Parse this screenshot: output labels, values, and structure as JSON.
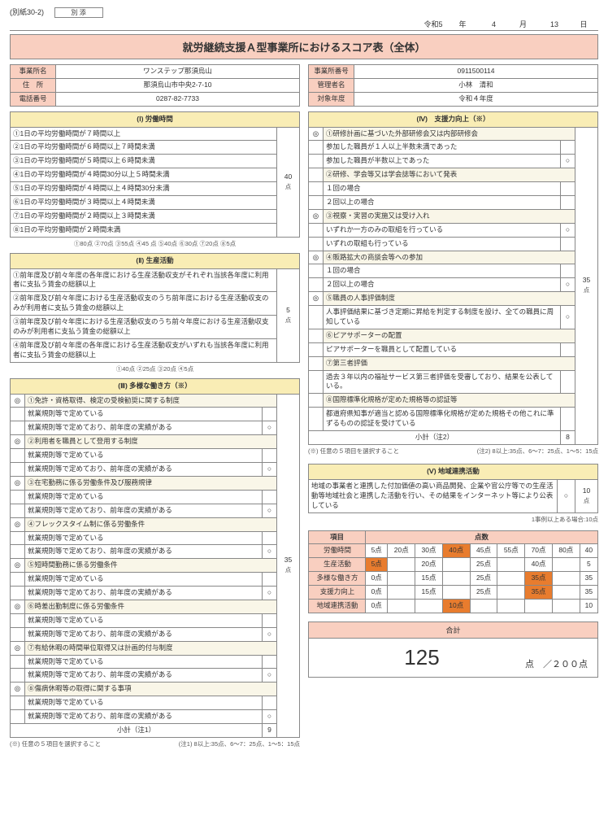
{
  "meta": {
    "form_id": "(別紙30-2)",
    "stamp": "別 添",
    "era": "令和5",
    "year_lbl": "年",
    "month": "4",
    "month_lbl": "月",
    "day": "13",
    "day_lbl": "日",
    "title": "就労継続支援Ａ型事業所におけるスコア表（全体）"
  },
  "info_left": [
    {
      "label": "事業所名",
      "value": "ワンステップ那須烏山"
    },
    {
      "label": "住　所",
      "value": "那須烏山市中央2-7-10"
    },
    {
      "label": "電話番号",
      "value": "0287-82-7733"
    }
  ],
  "info_right": [
    {
      "label": "事業所番号",
      "value": "0911500114"
    },
    {
      "label": "管理者名",
      "value": "小林　清和"
    },
    {
      "label": "対象年度",
      "value": "令和４年度"
    }
  ],
  "s1": {
    "head": "(Ⅰ) 労働時間",
    "rows": [
      "①1日の平均労働時間が７時間以上",
      "②1日の平均労働時間が６時間以上７時間未満",
      "③1日の平均労働時間が５時間以上６時間未満",
      "④1日の平均労働時間が４時間30分以上５時間未満",
      "⑤1日の平均労働時間が４時間以上４時間30分未満",
      "⑥1日の平均労働時間が３時間以上４時間未満",
      "⑦1日の平均労働時間が２時間以上３時間未満",
      "⑧1日の平均労働時間が２時間未満"
    ],
    "score": "40",
    "unit": "点",
    "key": "①80点 ②70点 ③55点 ④45 点 ⑤40点 ⑥30点 ⑦20点 ⑧5点"
  },
  "s2": {
    "head": "(Ⅱ) 生産活動",
    "rows": [
      "①前年度及び前々年度の各年度における生産活動収支がそれぞれ当該各年度に利用者に支払う賃金の総額以上",
      "②前年度及び前々年度における生産活動収支のうち前年度における生産活動収支のみが利用者に支払う賃金の総額以上",
      "③前年度及び前々年度における生産活動収支のうち前々年度における生産活動収支のみが利用者に支払う賃金の総額以上",
      "④前年度及び前々年度の各年度における生産活動収支がいずれも当該各年度に利用者に支払う賃金の総額以上"
    ],
    "score": "5",
    "unit": "点",
    "key": "①40点 ②25点 ③20点 ④5点"
  },
  "s3": {
    "head": "(Ⅲ) 多様な働き方（※）",
    "groups": [
      {
        "h": "①免許・資格取得、検定の受検勧奨に関する制度",
        "mark": "◎",
        "a": "就業規則等で定めている",
        "b": "就業規則等で定めており、前年度の実績がある"
      },
      {
        "h": "②利用者を職員として登用する制度",
        "mark": "◎",
        "a": "就業規則等で定めている",
        "b": "就業規則等で定めており、前年度の実績がある"
      },
      {
        "h": "③在宅勤務に係る労働条件及び服務規律",
        "mark": "◎",
        "a": "就業規則等で定めている",
        "b": "就業規則等で定めており、前年度の実績がある"
      },
      {
        "h": "④フレックスタイム制に係る労働条件",
        "mark": "◎",
        "a": "就業規則等で定めている",
        "b": "就業規則等で定めており、前年度の実績がある"
      },
      {
        "h": "⑤短時間勤務に係る労働条件",
        "mark": "◎",
        "a": "就業規則等で定めている",
        "b": "就業規則等で定めており、前年度の実績がある"
      },
      {
        "h": "⑥時差出勤制度に係る労働条件",
        "mark": "◎",
        "a": "就業規則等で定めている",
        "b": "就業規則等で定めており、前年度の実績がある"
      },
      {
        "h": "⑦有給休暇の時間単位取得又は計画的付与制度",
        "mark": "◎",
        "a": "就業規則等で定めている",
        "b": "就業規則等で定めており、前年度の実績がある"
      },
      {
        "h": "⑧傷病休暇等の取得に関する事項",
        "mark": "◎",
        "a": "就業規則等で定めている",
        "b": "就業規則等で定めており、前年度の実績がある"
      }
    ],
    "subtotal_lbl": "小計（注1）",
    "subtotal": "9",
    "score": "35",
    "unit": "点",
    "note": "(※) 任意の５項目を選択すること",
    "key": "(注1) 8以上:35点、6～7：25点、1～5：15点"
  },
  "s4": {
    "head": "(Ⅳ)　支援力向上（※）",
    "blocks": [
      {
        "mark": "◎",
        "h": "①研修計画に基づいた外部研修会又は内部研修会",
        "rows": [
          {
            "t": "参加した職員が１人以上半数未満であった",
            "m": ""
          },
          {
            "t": "参加した職員が半数以上であった",
            "m": "○"
          }
        ]
      },
      {
        "mark": "",
        "h": "②研修、学会等又は学会誌等において発表",
        "rows": [
          {
            "t": "１回の場合",
            "m": ""
          },
          {
            "t": "２回以上の場合",
            "m": ""
          }
        ]
      },
      {
        "mark": "◎",
        "h": "③視察・実習の実施又は受け入れ",
        "rows": [
          {
            "t": "いずれか一方のみの取組を行っている",
            "m": "○"
          },
          {
            "t": "いずれの取組も行っている",
            "m": ""
          }
        ]
      },
      {
        "mark": "◎",
        "h": "④販路拡大の商談会等への参加",
        "rows": [
          {
            "t": "１回の場合",
            "m": ""
          },
          {
            "t": "２回以上の場合",
            "m": "○"
          }
        ]
      },
      {
        "mark": "◎",
        "h": "⑤職員の人事評価制度",
        "rows": [
          {
            "t": "人事評価結果に基づき定期に昇給を判定する制度を設け、全ての職員に周知している",
            "m": "○"
          }
        ]
      },
      {
        "mark": "",
        "h": "⑥ピアサポーターの配置",
        "rows": [
          {
            "t": "ピアサポーターを職員として配置している",
            "m": ""
          }
        ]
      },
      {
        "mark": "",
        "h": "⑦第三者評価",
        "rows": [
          {
            "t": "過去３年以内の福祉サービス第三者評価を受審しており、結果を公表している。",
            "m": ""
          }
        ]
      },
      {
        "mark": "",
        "h": "⑧国際標準化規格が定めた規格等の認証等",
        "rows": [
          {
            "t": "都道府県知事が適当と認める国際標準化規格が定めた規格その他これに準ずるものの認証を受けている",
            "m": ""
          }
        ]
      }
    ],
    "subtotal_lbl": "小計（注2）",
    "subtotal": "8",
    "score": "35",
    "unit": "点",
    "note": "(※) 任意の５項目を選択すること",
    "key": "(注2) 8以上:35点、6～7：25点、1～5：15点"
  },
  "s5": {
    "head": "(Ⅴ) 地域連携活動",
    "text": "地域の事業者と連携した付加価値の高い商品開発、企業や官公庁等での生産活動等地域社会と連携した活動を行い、その結果をインターネット等により公表している",
    "mark": "○",
    "score": "10",
    "unit": "点",
    "key": "1事例以上ある場合:10点"
  },
  "grid": {
    "head_item": "項目",
    "head_score": "点数",
    "cols": [
      "5点",
      "20点",
      "30点",
      "40点",
      "45点",
      "55点",
      "70点",
      "80点",
      ""
    ],
    "rows": [
      {
        "lbl": "労働時間",
        "cells": [
          "5点",
          "20点",
          "30点",
          "40点",
          "45点",
          "55点",
          "70点",
          "80点",
          "40"
        ],
        "hl": 3
      },
      {
        "lbl": "生産活動",
        "cells": [
          "5点",
          "",
          "20点",
          "",
          "25点",
          "",
          "40点",
          "",
          "5"
        ],
        "hl": 0
      },
      {
        "lbl": "多様な働き方",
        "cells": [
          "0点",
          "",
          "15点",
          "",
          "25点",
          "",
          "35点",
          "",
          "35"
        ],
        "hl": 6
      },
      {
        "lbl": "支援力向上",
        "cells": [
          "0点",
          "",
          "15点",
          "",
          "25点",
          "",
          "35点",
          "",
          "35"
        ],
        "hl": 6
      },
      {
        "lbl": "地域連携活動",
        "cells": [
          "0点",
          "",
          "",
          "10点",
          "",
          "",
          "",
          "",
          "10"
        ],
        "hl": 3
      }
    ]
  },
  "total": {
    "head": "合計",
    "value": "125",
    "unit": "点",
    "max": "／２００点"
  }
}
